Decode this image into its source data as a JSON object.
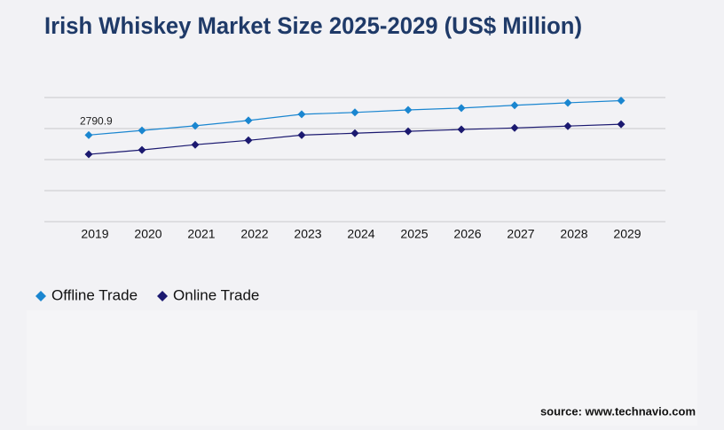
{
  "chart_data": {
    "type": "line",
    "title": "Irish Whiskey Market Size 2025-2029 (US$ Million)",
    "categories": [
      "2019",
      "2020",
      "2021",
      "2022",
      "2023",
      "2024",
      "2025",
      "2026",
      "2027",
      "2028",
      "2029"
    ],
    "series": [
      {
        "name": "Offline Trade",
        "color": "#1a86d0",
        "values": [
          2790.9,
          2940,
          3090,
          3260,
          3460,
          3520,
          3600,
          3660,
          3750,
          3830,
          3900
        ],
        "value_labels": [
          "2790.9",
          null,
          null,
          null,
          null,
          null,
          null,
          null,
          null,
          null,
          null
        ]
      },
      {
        "name": "Online Trade",
        "color": "#1b1970",
        "values": [
          2170,
          2310,
          2480,
          2620,
          2790,
          2850,
          2910,
          2970,
          3020,
          3080,
          3140
        ]
      }
    ],
    "ylim": [
      0,
      4000
    ],
    "yticks": [
      0,
      1000,
      2000,
      3000,
      4000
    ],
    "ytick_labels": false,
    "grid": true,
    "source": "source: www.technavio.com"
  }
}
